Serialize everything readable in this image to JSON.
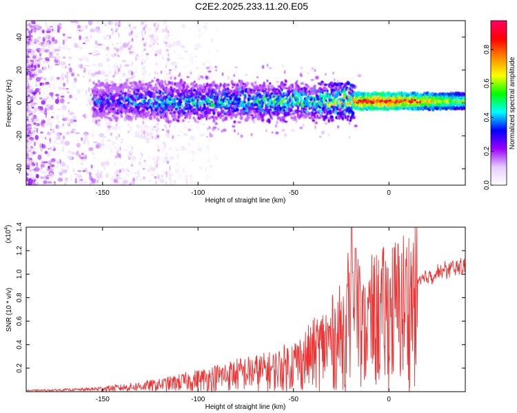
{
  "title": "C2E2.2025.233.11.20.E05",
  "chart_data": [
    {
      "type": "heatmap",
      "panel": "spectrogram",
      "xlabel": "Height of straight line (km)",
      "ylabel": "Frequency (Hz)",
      "xlim": [
        -190,
        40
      ],
      "ylim": [
        -50,
        50
      ],
      "xticks": [
        -150,
        -100,
        -50,
        0
      ],
      "yticks": [
        -40,
        -20,
        0,
        20,
        40
      ],
      "colorbar": {
        "label": "Normalized spectral amplitude",
        "range": [
          0.0,
          0.97
        ],
        "ticks": [
          0.0,
          0.2,
          0.4,
          0.6,
          0.8
        ],
        "colormap": [
          "#ffffff",
          "#e6ccff",
          "#9900ff",
          "#0000ff",
          "#00ffff",
          "#00ff00",
          "#ffff00",
          "#ff8800",
          "#ff0000",
          "#ff0066"
        ]
      },
      "ridge": {
        "description_only_for_drawing": false,
        "x_start": -155,
        "x_end": 40,
        "center_freq": 1,
        "amplitude_by_height": [
          {
            "x": -155,
            "value": 0.35
          },
          {
            "x": -120,
            "value": 0.45
          },
          {
            "x": -80,
            "value": 0.5
          },
          {
            "x": -40,
            "value": 0.55
          },
          {
            "x": -15,
            "value": 0.8
          },
          {
            "x": 0,
            "value": 0.85
          },
          {
            "x": 40,
            "value": 0.55
          }
        ]
      }
    },
    {
      "type": "line",
      "panel": "snr",
      "xlabel": "Height of straight line (km)",
      "ylabel": "SNR (10 * v/v)",
      "scale_label": "(x10",
      "scale_exponent": "4",
      "xlim": [
        -190,
        40
      ],
      "ylim": [
        0,
        1.4
      ],
      "xticks": [
        -150,
        -100,
        -50,
        0
      ],
      "yticks": [
        0.2,
        0.4,
        0.6,
        0.8,
        1.0,
        1.2,
        1.4
      ],
      "color": "#ee3333",
      "envelope": [
        {
          "x": -190,
          "y": 0.01
        },
        {
          "x": -160,
          "y": 0.02
        },
        {
          "x": -140,
          "y": 0.04
        },
        {
          "x": -120,
          "y": 0.07
        },
        {
          "x": -100,
          "y": 0.12
        },
        {
          "x": -80,
          "y": 0.18
        },
        {
          "x": -60,
          "y": 0.22
        },
        {
          "x": -45,
          "y": 0.32
        },
        {
          "x": -35,
          "y": 0.45
        },
        {
          "x": -25,
          "y": 0.58
        },
        {
          "x": -20,
          "y": 0.7
        },
        {
          "x": -15,
          "y": 0.55
        },
        {
          "x": -10,
          "y": 0.72
        },
        {
          "x": 0,
          "y": 0.8
        },
        {
          "x": 10,
          "y": 0.9
        },
        {
          "x": 20,
          "y": 1.02
        },
        {
          "x": 30,
          "y": 1.08
        },
        {
          "x": 40,
          "y": 1.12
        }
      ],
      "peaks": [
        {
          "x": -19.5,
          "y": 1.4
        },
        {
          "x": -17.5,
          "y": 1.22
        }
      ]
    }
  ]
}
